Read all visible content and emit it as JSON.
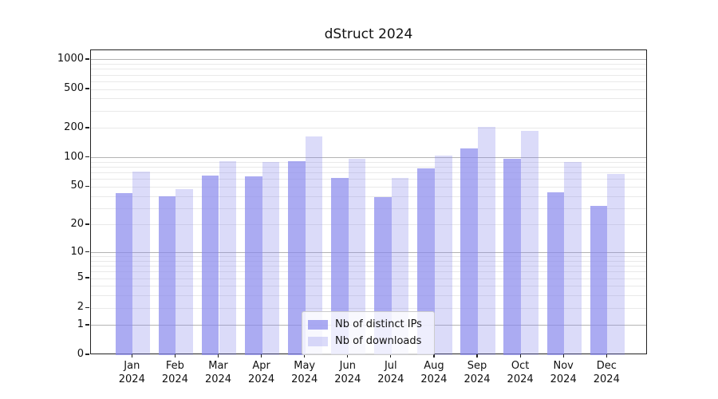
{
  "title": "dStruct 2024",
  "colors": {
    "bar_rgb": "136,136,236",
    "ips_alpha": "0.7",
    "downloads_alpha": "0.3",
    "major_grid": "#b4b4b4",
    "minor_grid": "#e9e9e9",
    "axis": "#222222"
  },
  "legend": {
    "items": [
      {
        "label": "Nb of distinct IPs",
        "series": "ips"
      },
      {
        "label": "Nb of downloads",
        "series": "downloads"
      }
    ]
  },
  "y_axis": {
    "scale": "symlog",
    "tick_labels": [
      "0",
      "1",
      "2",
      "5",
      "10",
      "20",
      "50",
      "100",
      "200",
      "500",
      "1000"
    ],
    "tick_values": [
      0,
      1,
      2,
      5,
      10,
      20,
      50,
      100,
      200,
      500,
      1000
    ],
    "major_values": [
      1,
      10,
      100,
      1000
    ],
    "minor_values": [
      3,
      4,
      6,
      7,
      8,
      9,
      30,
      40,
      60,
      70,
      80,
      90,
      300,
      400,
      600,
      700,
      800,
      900
    ],
    "ymax": 1250
  },
  "chart_data": {
    "type": "bar",
    "title": "dStruct 2024",
    "categories": [
      "Jan 2024",
      "Feb 2024",
      "Mar 2024",
      "Apr 2024",
      "May 2024",
      "Jun 2024",
      "Jul 2024",
      "Aug 2024",
      "Sep 2024",
      "Oct 2024",
      "Nov 2024",
      "Dec 2024"
    ],
    "series": [
      {
        "name": "Nb of distinct IPs",
        "values": [
          43,
          40,
          66,
          64,
          93,
          62,
          39,
          78,
          125,
          98,
          44,
          32
        ]
      },
      {
        "name": "Nb of downloads",
        "values": [
          72,
          48,
          93,
          91,
          165,
          98,
          62,
          105,
          208,
          190,
          90,
          68
        ]
      }
    ],
    "xlabel": "",
    "ylabel": "",
    "yscale": "symlog",
    "yticks": [
      0,
      1,
      2,
      5,
      10,
      20,
      50,
      100,
      200,
      500,
      1000
    ],
    "ylim": [
      0,
      1250
    ],
    "grid": true,
    "legend_position": "lower-center"
  }
}
